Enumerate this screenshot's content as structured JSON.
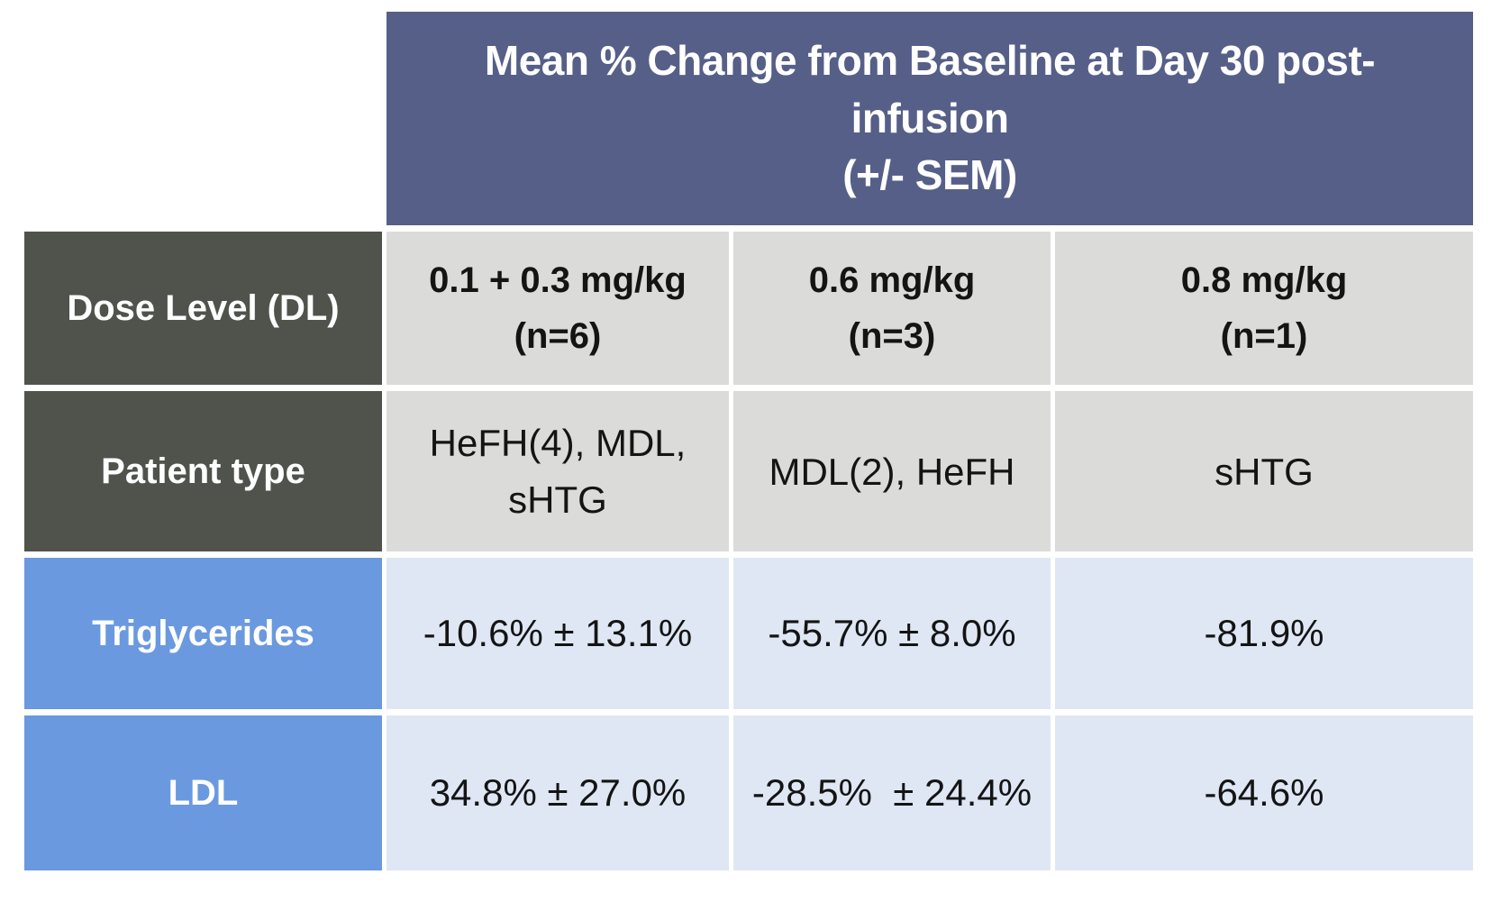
{
  "colors": {
    "page_bg": "#FFFFFF",
    "header_bg": "#565F88",
    "dark_label_bg": "#4F534B",
    "blue_label_bg": "#6A99DF",
    "gray_cell_bg": "#DBDCD9",
    "blue_cell_bg": "#DFE7F5",
    "light_text": "#FFFFFF",
    "data_text": "#141414"
  },
  "title": {
    "lines": [
      "Mean % Change from Baseline at Day 30 post-",
      "infusion",
      "(+/- SEM)"
    ]
  },
  "rows": [
    {
      "label": "Dose Level (DL)",
      "cells": [
        "0.1 + 0.3 mg/kg\n(n=6)",
        "0.6 mg/kg\n(n=3)",
        "0.8 mg/kg\n(n=1)"
      ]
    },
    {
      "label": "Patient type",
      "cells": [
        "HeFH(4), MDL,\nsHTG",
        "MDL(2), HeFH",
        "sHTG"
      ]
    },
    {
      "label": "Triglycerides",
      "cells": [
        "-10.6% ± 13.1%",
        "-55.7% ± 8.0%",
        "-81.9%"
      ]
    },
    {
      "label": "LDL",
      "cells": [
        "34.8% ± 27.0%",
        "-28.5%  ± 24.4%",
        "-64.6%"
      ]
    }
  ],
  "chart_data": {
    "type": "table",
    "title": "Mean % Change from Baseline at Day 30 post-infusion (+/- SEM)",
    "columns": [
      "Dose Level (DL)",
      "0.1 + 0.3 mg/kg (n=6)",
      "0.6 mg/kg (n=3)",
      "0.8 mg/kg (n=1)"
    ],
    "rows": [
      [
        "Patient type",
        "HeFH(4), MDL, sHTG",
        "MDL(2), HeFH",
        "sHTG"
      ],
      [
        "Triglycerides",
        "-10.6% ± 13.1%",
        "-55.7% ± 8.0%",
        "-81.9%"
      ],
      [
        "LDL",
        "34.8% ± 27.0%",
        "-28.5% ± 24.4%",
        "-64.6%"
      ]
    ],
    "notes": {
      "triglycerides_pct_change": [
        -10.6,
        -55.7,
        -81.9
      ],
      "triglycerides_sem": [
        13.1,
        8.0,
        null
      ],
      "ldl_pct_change": [
        34.8,
        -28.5,
        -64.6
      ],
      "ldl_sem": [
        27.0,
        24.4,
        null
      ],
      "n_per_dose": [
        6,
        3,
        1
      ]
    }
  }
}
